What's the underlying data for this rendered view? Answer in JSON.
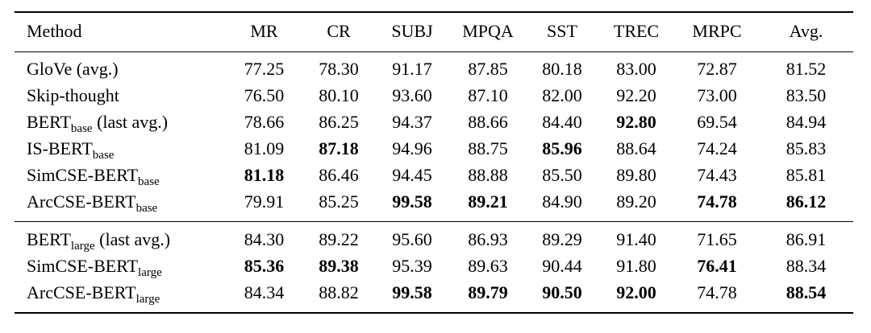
{
  "table": {
    "columns": [
      "Method",
      "MR",
      "CR",
      "SUBJ",
      "MPQA",
      "SST",
      "TREC",
      "MRPC",
      "Avg."
    ],
    "text_color": "#000000",
    "background_color": "#ffffff",
    "sections": [
      {
        "name": "base-models",
        "rows": [
          {
            "method": {
              "name": "GloVe (avg.)",
              "sub": "",
              "suffix": ""
            },
            "values": [
              "77.25",
              "78.30",
              "91.17",
              "87.85",
              "80.18",
              "83.00",
              "72.87",
              "81.52"
            ],
            "bold": [
              false,
              false,
              false,
              false,
              false,
              false,
              false,
              false
            ]
          },
          {
            "method": {
              "name": "Skip-thought",
              "sub": "",
              "suffix": ""
            },
            "values": [
              "76.50",
              "80.10",
              "93.60",
              "87.10",
              "82.00",
              "92.20",
              "73.00",
              "83.50"
            ],
            "bold": [
              false,
              false,
              false,
              false,
              false,
              false,
              false,
              false
            ]
          },
          {
            "method": {
              "name": "BERT",
              "sub": "base",
              "suffix": " (last avg.)"
            },
            "values": [
              "78.66",
              "86.25",
              "94.37",
              "88.66",
              "84.40",
              "92.80",
              "69.54",
              "84.94"
            ],
            "bold": [
              false,
              false,
              false,
              false,
              false,
              true,
              false,
              false
            ]
          },
          {
            "method": {
              "name": "IS-BERT",
              "sub": "base",
              "suffix": ""
            },
            "values": [
              "81.09",
              "87.18",
              "94.96",
              "88.75",
              "85.96",
              "88.64",
              "74.24",
              "85.83"
            ],
            "bold": [
              false,
              true,
              false,
              false,
              true,
              false,
              false,
              false
            ]
          },
          {
            "method": {
              "name": "SimCSE-BERT",
              "sub": "base",
              "suffix": ""
            },
            "values": [
              "81.18",
              "86.46",
              "94.45",
              "88.88",
              "85.50",
              "89.80",
              "74.43",
              "85.81"
            ],
            "bold": [
              true,
              false,
              false,
              false,
              false,
              false,
              false,
              false
            ]
          },
          {
            "method": {
              "name": "ArcCSE-BERT",
              "sub": "base",
              "suffix": ""
            },
            "values": [
              "79.91",
              "85.25",
              "99.58",
              "89.21",
              "84.90",
              "89.20",
              "74.78",
              "86.12"
            ],
            "bold": [
              false,
              false,
              true,
              true,
              false,
              false,
              true,
              true
            ]
          }
        ]
      },
      {
        "name": "large-models",
        "rows": [
          {
            "method": {
              "name": "BERT",
              "sub": "large",
              "suffix": " (last avg.)"
            },
            "values": [
              "84.30",
              "89.22",
              "95.60",
              "86.93",
              "89.29",
              "91.40",
              "71.65",
              "86.91"
            ],
            "bold": [
              false,
              false,
              false,
              false,
              false,
              false,
              false,
              false
            ]
          },
          {
            "method": {
              "name": "SimCSE-BERT",
              "sub": "large",
              "suffix": ""
            },
            "values": [
              "85.36",
              "89.38",
              "95.39",
              "89.63",
              "90.44",
              "91.80",
              "76.41",
              "88.34"
            ],
            "bold": [
              true,
              true,
              false,
              false,
              false,
              false,
              true,
              false
            ]
          },
          {
            "method": {
              "name": "ArcCSE-BERT",
              "sub": "large",
              "suffix": ""
            },
            "values": [
              "84.34",
              "88.82",
              "99.58",
              "89.79",
              "90.50",
              "92.00",
              "74.78",
              "88.54"
            ],
            "bold": [
              false,
              false,
              true,
              true,
              true,
              true,
              false,
              true
            ]
          }
        ]
      }
    ]
  }
}
